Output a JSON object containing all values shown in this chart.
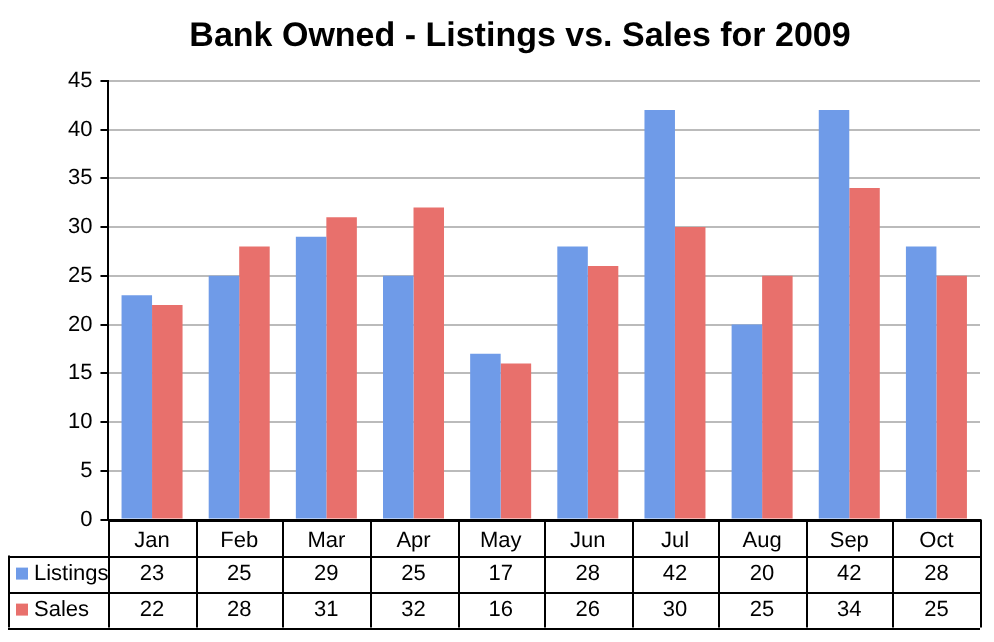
{
  "chart_data": {
    "type": "bar",
    "title": "Bank Owned - Listings vs. Sales for 2009",
    "categories": [
      "Jan",
      "Feb",
      "Mar",
      "Apr",
      "May",
      "Jun",
      "Jul",
      "Aug",
      "Sep",
      "Oct"
    ],
    "series": [
      {
        "name": "Listings",
        "color": "#6f9be8",
        "values": [
          23,
          25,
          29,
          25,
          17,
          28,
          42,
          20,
          42,
          28
        ]
      },
      {
        "name": "Sales",
        "color": "#e8706c",
        "values": [
          22,
          28,
          31,
          32,
          16,
          26,
          30,
          25,
          34,
          25
        ]
      }
    ],
    "ylim": [
      0,
      45
    ],
    "yticks": [
      0,
      5,
      10,
      15,
      20,
      25,
      30,
      35,
      40,
      45
    ],
    "grid": "y",
    "legend": "bottom",
    "data_labels": true
  }
}
